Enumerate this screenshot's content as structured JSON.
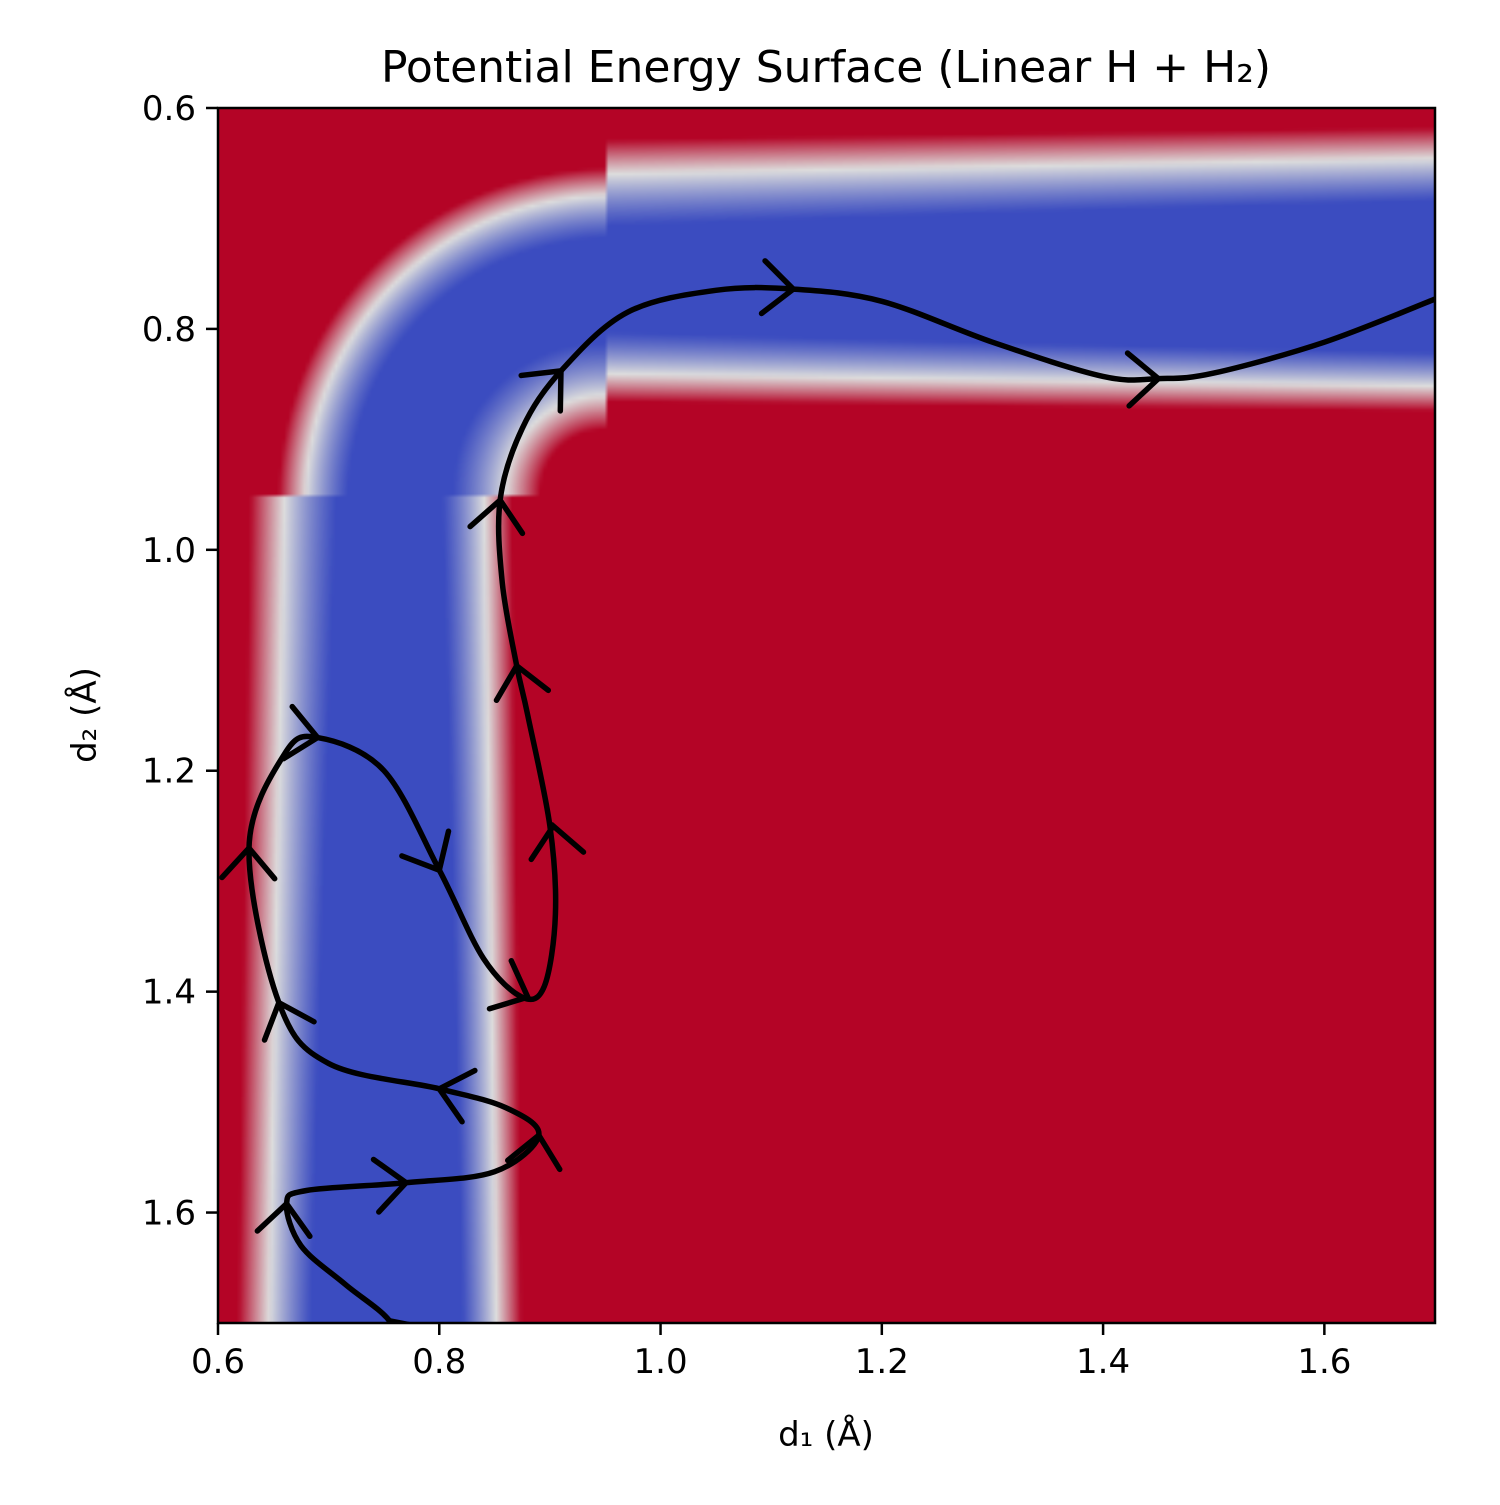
{
  "chart_data": {
    "type": "heatmap",
    "title": "Potential Energy Surface (Linear H + H₂)",
    "xlabel": "d₁ (Å)",
    "ylabel": "d₂ (Å)",
    "xlim": [
      0.6,
      1.7
    ],
    "ylim": [
      1.7,
      0.6
    ],
    "y_axis_inverted": true,
    "x_ticks": [
      "0.6",
      "0.8",
      "1.0",
      "1.2",
      "1.4",
      "1.6"
    ],
    "y_ticks": [
      "0.6",
      "0.8",
      "1.0",
      "1.2",
      "1.4",
      "1.6"
    ],
    "colormap": "coolwarm",
    "colormap_colors": [
      "#3b4cc0",
      "#dddddd",
      "#b40426"
    ],
    "grid": false,
    "surface_valley": {
      "asymptote_d1": 0.76,
      "asymptote_d2": 0.76,
      "corner": [
        0.95,
        0.95
      ]
    },
    "trajectory": {
      "color": "#000000",
      "points": [
        [
          0.765,
          1.73
        ],
        [
          0.755,
          1.698
        ],
        [
          0.715,
          1.665
        ],
        [
          0.675,
          1.63
        ],
        [
          0.662,
          1.592
        ],
        [
          0.68,
          1.58
        ],
        [
          0.77,
          1.573
        ],
        [
          0.85,
          1.563
        ],
        [
          0.89,
          1.53
        ],
        [
          0.86,
          1.505
        ],
        [
          0.8,
          1.488
        ],
        [
          0.7,
          1.465
        ],
        [
          0.655,
          1.41
        ],
        [
          0.628,
          1.27
        ],
        [
          0.66,
          1.185
        ],
        [
          0.69,
          1.17
        ],
        [
          0.75,
          1.2
        ],
        [
          0.8,
          1.29
        ],
        [
          0.84,
          1.37
        ],
        [
          0.875,
          1.405
        ],
        [
          0.895,
          1.395
        ],
        [
          0.905,
          1.33
        ],
        [
          0.9,
          1.25
        ],
        [
          0.88,
          1.15
        ],
        [
          0.87,
          1.105
        ],
        [
          0.857,
          1.03
        ],
        [
          0.855,
          0.955
        ],
        [
          0.875,
          0.89
        ],
        [
          0.91,
          0.838
        ],
        [
          0.97,
          0.785
        ],
        [
          1.05,
          0.765
        ],
        [
          1.12,
          0.764
        ],
        [
          1.2,
          0.775
        ],
        [
          1.3,
          0.812
        ],
        [
          1.4,
          0.843
        ],
        [
          1.45,
          0.845
        ],
        [
          1.5,
          0.84
        ],
        [
          1.6,
          0.812
        ],
        [
          1.7,
          0.773
        ]
      ],
      "arrow_at": [
        [
          0.755,
          1.698
        ],
        [
          0.662,
          1.592
        ],
        [
          0.77,
          1.573
        ],
        [
          0.89,
          1.53
        ],
        [
          0.8,
          1.488
        ],
        [
          0.655,
          1.41
        ],
        [
          0.628,
          1.27
        ],
        [
          0.69,
          1.17
        ],
        [
          0.8,
          1.29
        ],
        [
          0.88,
          1.405
        ],
        [
          0.903,
          1.25
        ],
        [
          0.87,
          1.105
        ],
        [
          0.855,
          0.955
        ],
        [
          0.91,
          0.838
        ],
        [
          1.12,
          0.764
        ],
        [
          1.45,
          0.845
        ]
      ]
    }
  }
}
